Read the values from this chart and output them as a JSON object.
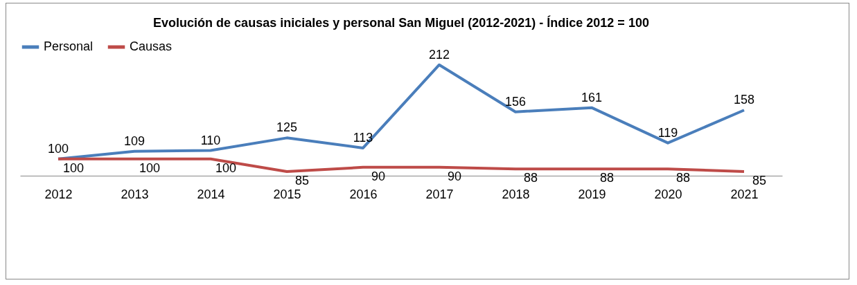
{
  "chart_data": {
    "type": "line",
    "title": "Evolución de causas iniciales y personal San Miguel (2012-2021) - Índice 2012 = 100",
    "categories": [
      "2012",
      "2013",
      "2014",
      "2015",
      "2016",
      "2017",
      "2018",
      "2019",
      "2020",
      "2021"
    ],
    "series": [
      {
        "name": "Personal",
        "color": "#4a7ebb",
        "values": [
          100,
          109,
          110,
          125,
          113,
          212,
          156,
          161,
          119,
          158
        ]
      },
      {
        "name": "Causas",
        "color": "#be4b48",
        "values": [
          100,
          100,
          100,
          85,
          90,
          90,
          88,
          88,
          88,
          85
        ]
      }
    ],
    "data_labels": true,
    "legend": "top",
    "grid": false,
    "marker": "none"
  }
}
